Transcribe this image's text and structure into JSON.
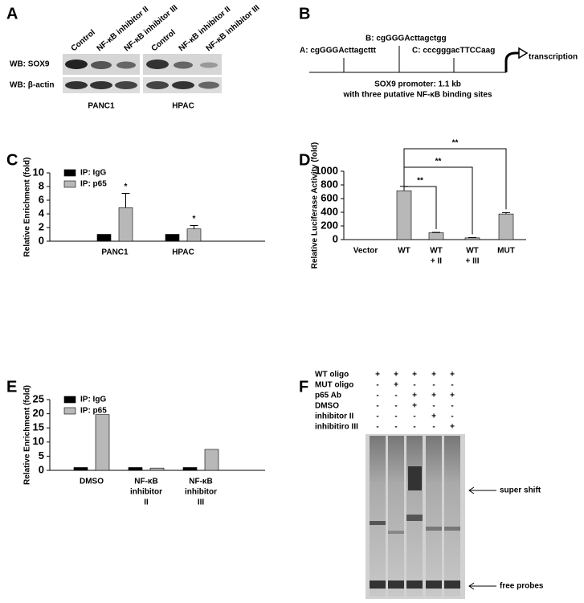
{
  "panel_letters": [
    "A",
    "B",
    "C",
    "D",
    "E",
    "F"
  ],
  "panel_a": {
    "lanes": [
      "Control",
      "NF-κB inhibitor II",
      "NF-κB inhibitor III",
      "Control",
      "NF-κB inhibitor II",
      "NF-κB inhibitor III"
    ],
    "rows": [
      "WB: SOX9",
      "WB: β-actin"
    ],
    "cell_lines": [
      "PANC1",
      "HPAC"
    ]
  },
  "panel_b": {
    "sites": [
      "A: cgGGGActtagcttt",
      "B: cgGGGActtagctgg",
      "C: cccgggacTTCCaag"
    ],
    "arrow_label": "transcription",
    "caption": [
      "SOX9 promoter: 1.1 kb",
      "with three putative NF-κB binding sites"
    ]
  },
  "chart_data": [
    {
      "type": "bar",
      "ylabel": "Relative Enrichment (fold)",
      "ylim": [
        0,
        10
      ],
      "yticks": [
        0,
        2,
        4,
        6,
        8,
        10
      ],
      "categories": [
        [
          "PANC1"
        ],
        [
          "HPAC"
        ]
      ],
      "series": [
        {
          "name": "IP: IgG",
          "color": "#000000",
          "values": [
            1,
            1
          ]
        },
        {
          "name": "IP: p65",
          "color": "#b8b8b8",
          "values": [
            4.9,
            1.8
          ],
          "errors": [
            2.1,
            0.5
          ],
          "significance": [
            "*",
            "*"
          ]
        }
      ]
    },
    {
      "type": "bar",
      "ylabel": "Relative Luciferase Activity (fold)",
      "ylim": [
        0,
        1000
      ],
      "yticks": [
        0,
        200,
        400,
        600,
        800,
        1000
      ],
      "categories": [
        [
          "Vector"
        ],
        [
          "WT"
        ],
        [
          "WT",
          "+ II"
        ],
        [
          "WT",
          "+ III"
        ],
        [
          "MUT"
        ]
      ],
      "color": "#b8b8b8",
      "values": [
        0,
        715,
        100,
        25,
        375
      ],
      "errors": [
        0,
        65,
        6,
        4,
        20
      ],
      "significance": [
        "**",
        "**",
        "**"
      ]
    },
    {
      "type": "bar",
      "ylabel": "Relative Enrichment (fold)",
      "ylim": [
        0,
        25
      ],
      "yticks": [
        0,
        5,
        10,
        15,
        20,
        25
      ],
      "categories": [
        [
          "DMSO"
        ],
        [
          "NF-κB",
          "inhibitor",
          "II"
        ],
        [
          "NF-κB",
          "inhibitor",
          "III"
        ]
      ],
      "series": [
        {
          "name": "IP: IgG",
          "color": "#000000",
          "values": [
            1,
            1,
            1
          ]
        },
        {
          "name": "IP: p65",
          "color": "#b8b8b8",
          "values": [
            19.7,
            0.8,
            7.4
          ]
        }
      ]
    }
  ],
  "panel_f": {
    "conditions": [
      {
        "label": "WT oligo",
        "lanes": [
          "+",
          "+",
          "+",
          "+",
          "+"
        ]
      },
      {
        "label": "MUT oligo",
        "lanes": [
          "-",
          "+",
          "-",
          "-",
          "-"
        ]
      },
      {
        "label": "p65 Ab",
        "lanes": [
          "-",
          "-",
          "+",
          "+",
          "+"
        ]
      },
      {
        "label": "DMSO",
        "lanes": [
          "-",
          "-",
          "+",
          "-",
          "-"
        ]
      },
      {
        "label": "inhibitor II",
        "lanes": [
          "-",
          "-",
          "-",
          "+",
          "-"
        ]
      },
      {
        "label": "inhibitiro III",
        "lanes": [
          "-",
          "-",
          "-",
          "-",
          "+"
        ]
      }
    ],
    "markers": [
      "super shift",
      "free probes"
    ]
  }
}
